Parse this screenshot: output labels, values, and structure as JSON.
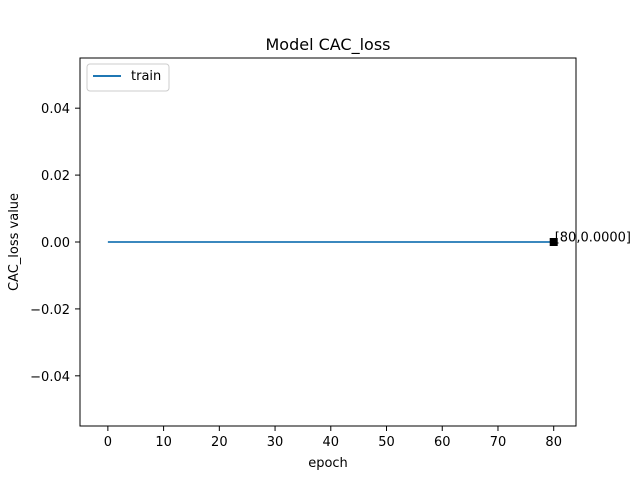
{
  "chart_data": {
    "type": "line",
    "title": "Model CAC_loss",
    "xlabel": "epoch",
    "ylabel": "CAC_loss value",
    "xlim": [
      -5,
      84
    ],
    "ylim": [
      -0.055,
      0.055
    ],
    "xticks": [
      0,
      10,
      20,
      30,
      40,
      50,
      60,
      70,
      80
    ],
    "xtick_labels": [
      "0",
      "10",
      "20",
      "30",
      "40",
      "50",
      "60",
      "70",
      "80"
    ],
    "yticks": [
      -0.04,
      -0.02,
      0.0,
      0.02,
      0.04
    ],
    "ytick_labels": [
      "−0.04",
      "−0.02",
      "0.00",
      "0.02",
      "0.04"
    ],
    "grid": false,
    "legend_position": "upper-left",
    "series": [
      {
        "name": "train",
        "color": "#1f77b4",
        "x": [
          0,
          80
        ],
        "y": [
          0.0,
          0.0
        ]
      }
    ],
    "annotation": {
      "x": 80,
      "y": 0.0,
      "text": "[80,0.0000]",
      "marker_color": "#000000"
    }
  }
}
